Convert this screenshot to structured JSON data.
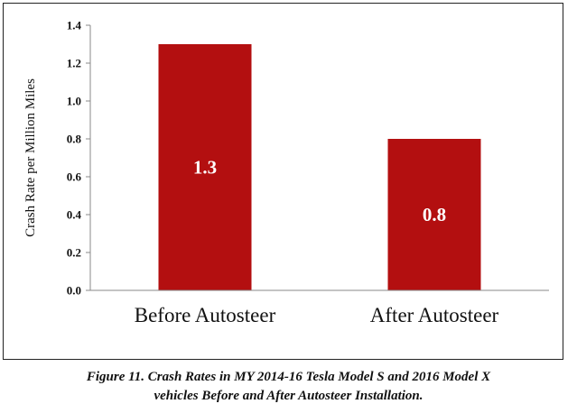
{
  "chart_data": {
    "type": "bar",
    "categories": [
      "Before Autosteer",
      "After Autosteer"
    ],
    "values": [
      1.3,
      0.8
    ],
    "data_labels": [
      "1.3",
      "0.8"
    ],
    "title": "",
    "xlabel": "",
    "ylabel": "Crash Rate per Million Miles",
    "ylim": [
      0,
      1.4
    ],
    "yticks": [
      "0.0",
      "0.2",
      "0.4",
      "0.6",
      "0.8",
      "1.0",
      "1.2",
      "1.4"
    ],
    "grid": false,
    "legend": "none",
    "bar_color": "#b30f10"
  },
  "caption": {
    "line1": "Figure 11. Crash Rates in MY 2014-16 Tesla Model S and 2016 Model X",
    "line2": "vehicles Before and After Autosteer Installation."
  }
}
